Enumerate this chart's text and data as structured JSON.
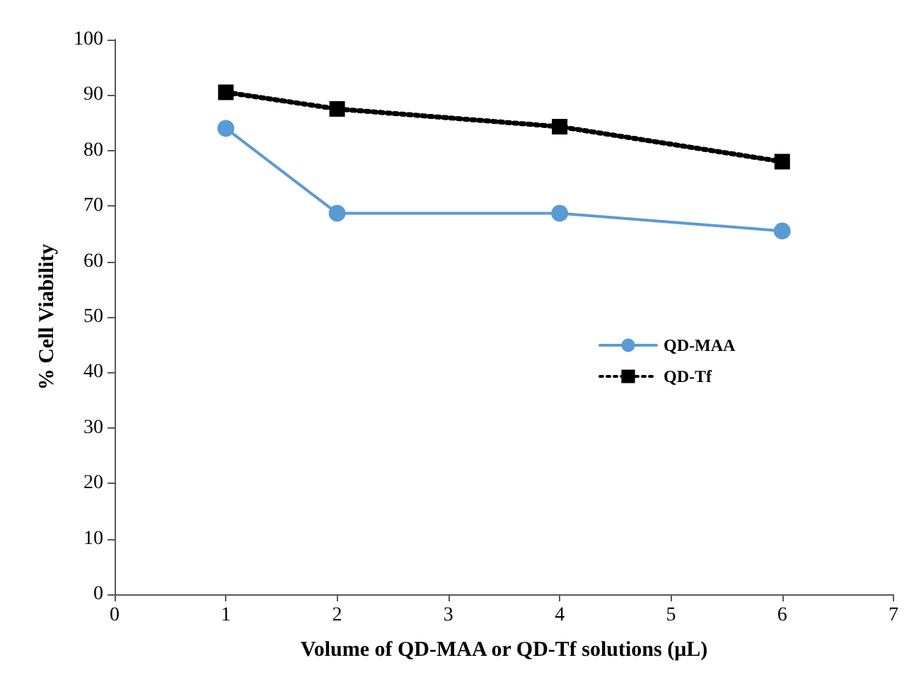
{
  "chart_data": {
    "type": "line",
    "xlabel": "Volume of QD-MAA or QD-Tf solutions (μL)",
    "ylabel": "% Cell Viability",
    "xlim": [
      0,
      7
    ],
    "xticks": [
      0,
      1,
      2,
      3,
      4,
      5,
      6,
      7
    ],
    "ylim": [
      0,
      100
    ],
    "yticks": [
      0,
      10,
      20,
      30,
      40,
      50,
      60,
      70,
      80,
      90,
      100
    ],
    "x": [
      1,
      2,
      4,
      6
    ],
    "grid": false,
    "legend": "right",
    "series": [
      {
        "name": "QD-MAA",
        "color": "#5b9bd5",
        "marker": "circle",
        "line_style": "solid",
        "values": [
          84,
          68.7,
          68.7,
          65.5
        ]
      },
      {
        "name": "QD-Tf",
        "color": "#000000",
        "marker": "square",
        "line_style": "dotted",
        "values": [
          90.5,
          87.5,
          84.3,
          78
        ]
      }
    ]
  }
}
